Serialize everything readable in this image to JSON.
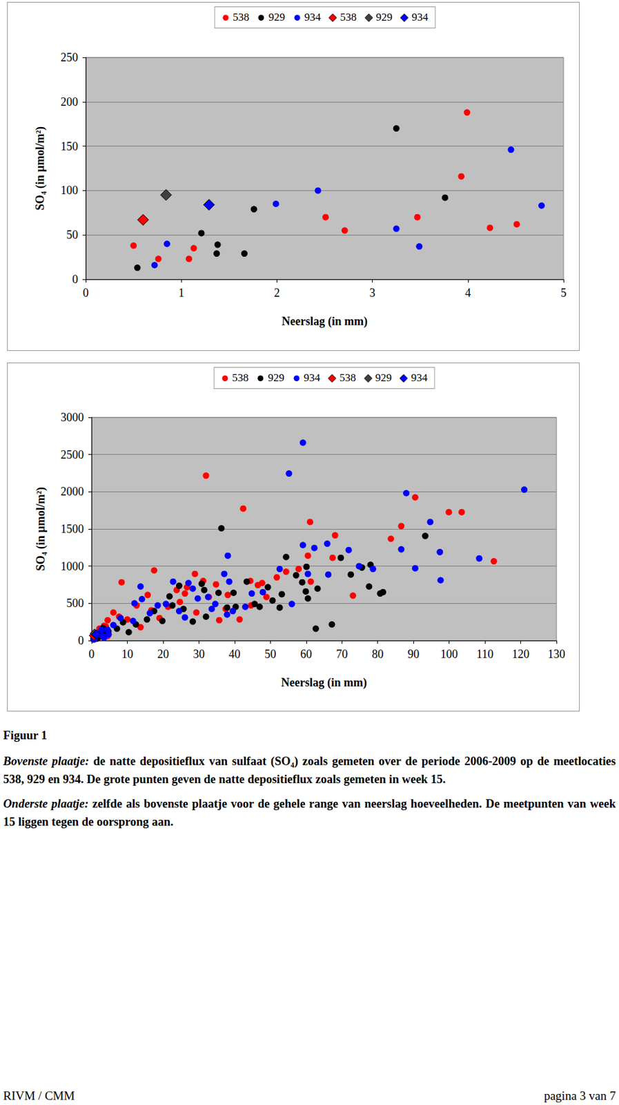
{
  "chart_data": [
    {
      "type": "scatter",
      "xlabel": "Neerslag (in mm)",
      "ylabel": "SO₄ (in µmol/m²)",
      "xlim": [
        0,
        5
      ],
      "xticks": [
        0,
        1,
        2,
        3,
        4,
        5
      ],
      "ylim": [
        0,
        250
      ],
      "yticks": [
        0,
        50,
        100,
        150,
        200,
        250
      ],
      "grid": "y",
      "legend": "top",
      "series": [
        {
          "name": "538",
          "color": "#ff0000",
          "marker": "circle",
          "x": [
            0.5,
            0.76,
            1.08,
            1.13,
            2.51,
            2.71,
            3.47,
            3.93,
            3.99,
            4.23,
            4.51
          ],
          "values": [
            38,
            23,
            23,
            35,
            70,
            55,
            70,
            116,
            188,
            58,
            62
          ]
        },
        {
          "name": "929",
          "color": "#000000",
          "marker": "circle",
          "x": [
            0.54,
            1.21,
            1.38,
            1.37,
            1.66,
            1.76,
            3.25,
            3.76
          ],
          "values": [
            13,
            52,
            39,
            29,
            29,
            79,
            170,
            92
          ]
        },
        {
          "name": "934",
          "color": "#0000ff",
          "marker": "circle",
          "x": [
            0.72,
            0.85,
            1.99,
            2.43,
            3.25,
            3.49,
            4.45,
            4.77
          ],
          "values": [
            16,
            40,
            85,
            100,
            57,
            37,
            146,
            83
          ]
        },
        {
          "name": "538",
          "color": "#ff0000",
          "marker": "diamond",
          "x": [
            0.6
          ],
          "values": [
            67
          ]
        },
        {
          "name": "929",
          "color": "#404040",
          "marker": "diamond",
          "x": [
            0.84
          ],
          "values": [
            95
          ]
        },
        {
          "name": "934",
          "color": "#0000ff",
          "marker": "diamond",
          "x": [
            1.29
          ],
          "values": [
            84
          ]
        }
      ]
    },
    {
      "type": "scatter",
      "xlabel": "Neerslag (in mm)",
      "ylabel": "SO₄ (in µmol/m²)",
      "xlim": [
        0,
        130
      ],
      "xticks": [
        0,
        10,
        20,
        30,
        40,
        50,
        60,
        70,
        80,
        90,
        100,
        110,
        120,
        130
      ],
      "ylim": [
        0,
        3000
      ],
      "yticks": [
        0,
        500,
        1000,
        1500,
        2000,
        2500,
        3000
      ],
      "grid": "y",
      "legend": "top",
      "series": [
        {
          "name": "538",
          "color": "#ff0000",
          "marker": "circle",
          "x": [
            0.5,
            0.76,
            1.08,
            1.13,
            2.51,
            2.71,
            3.47,
            3.93,
            3.99,
            4.23,
            4.51,
            8.4,
            17.5,
            32,
            42.4,
            61.1,
            68.1,
            83.7,
            86.6,
            90.5,
            99.9,
            103.5,
            112.5,
            67.4,
            73.1,
            60.5,
            61.3,
            57.9,
            54.4,
            51.8,
            44.4,
            47.7,
            46.5,
            35.7,
            34.8,
            28.9,
            31.2,
            26.7,
            26.1,
            23.8,
            6.1,
            4.5,
            10,
            12.6,
            15.7,
            16.7,
            19,
            21.4,
            2.2,
            3.5,
            7.7,
            13.7,
            38.1,
            37.5,
            41.4,
            32.8,
            29.3,
            24.7,
            44.6,
            48.9
          ],
          "values": [
            38,
            23,
            23,
            35,
            70,
            55,
            70,
            116,
            188,
            58,
            62,
            783,
            943,
            2217,
            1774,
            1594,
            1415,
            1368,
            1538,
            1925,
            1726,
            1726,
            1066,
            1113,
            604,
            1141,
            792,
            962,
            925,
            849,
            802,
            774,
            745,
            274,
            755,
            896,
            802,
            717,
            632,
            679,
            377,
            274,
            283,
            472,
            613,
            406,
            302,
            453,
            160,
            198,
            321,
            179,
            613,
            425,
            283,
            585,
            377,
            519,
            472,
            585
          ]
        },
        {
          "name": "929",
          "color": "#000000",
          "marker": "circle",
          "x": [
            0.54,
            1.21,
            1.38,
            1.37,
            1.66,
            1.76,
            3.25,
            3.76,
            36.3,
            93.3,
            54.4,
            69.7,
            78,
            75.6,
            72.5,
            77.6,
            80.7,
            81.5,
            62.7,
            67.2,
            60.1,
            58.9,
            57.2,
            59.9,
            60.5,
            63.2,
            49.3,
            53.2,
            50.6,
            52.6,
            43.4,
            45.6,
            47,
            39.7,
            37.9,
            40.3,
            30.8,
            31.5,
            32,
            28.3,
            24.5,
            21.8,
            22.6,
            19.8,
            25.7,
            17.5,
            15.5,
            12.4,
            10.4,
            8.8,
            7.1,
            4.7,
            35.5
          ],
          "values": [
            13,
            52,
            39,
            29,
            29,
            79,
            170,
            92,
            1509,
            1406,
            1123,
            1113,
            1019,
            981,
            887,
            726,
            632,
            651,
            160,
            217,
            991,
            783,
            877,
            660,
            566,
            698,
            717,
            623,
            538,
            443,
            792,
            491,
            453,
            642,
            443,
            453,
            764,
            679,
            321,
            255,
            736,
            594,
            472,
            264,
            425,
            396,
            283,
            217,
            113,
            245,
            160,
            123,
            642
          ]
        },
        {
          "name": "934",
          "color": "#0000ff",
          "marker": "circle",
          "x": [
            0.72,
            0.85,
            1.99,
            2.43,
            3.25,
            3.49,
            4.45,
            4.77,
            59.1,
            55.2,
            88,
            121,
            94.7,
            86.6,
            97.4,
            108.4,
            97.6,
            90.5,
            71.9,
            65.9,
            62.3,
            59.1,
            74.8,
            78.7,
            66.2,
            60.5,
            56,
            52.6,
            38.1,
            37.1,
            38.5,
            44.8,
            47.9,
            39.5,
            37.9,
            33.6,
            34.6,
            32.6,
            22.8,
            27.1,
            28.3,
            29.7,
            13.7,
            12,
            14.1,
            20.8,
            18.5,
            16.3,
            11.6,
            8.1,
            2.7,
            6.1,
            24.5,
            26.1,
            43
          ],
          "values": [
            16,
            40,
            85,
            100,
            57,
            37,
            146,
            83,
            2660,
            2245,
            1981,
            2028,
            1594,
            1226,
            1189,
            1104,
            811,
            972,
            1217,
            1302,
            1245,
            1283,
            1000,
            962,
            887,
            896,
            491,
            962,
            1141,
            896,
            792,
            632,
            651,
            396,
            349,
            425,
            491,
            585,
            792,
            774,
            698,
            566,
            726,
            500,
            557,
            491,
            472,
            368,
            264,
            302,
            142,
            208,
            396,
            311,
            453
          ]
        },
        {
          "name": "538",
          "color": "#ff0000",
          "marker": "diamond",
          "x": [
            0.6
          ],
          "values": [
            67
          ]
        },
        {
          "name": "929",
          "color": "#404040",
          "marker": "diamond",
          "x": [
            0.84
          ],
          "values": [
            95
          ]
        },
        {
          "name": "934",
          "color": "#0000ff",
          "marker": "diamond",
          "x": [
            1.29
          ],
          "values": [
            84
          ]
        }
      ]
    }
  ],
  "caption": {
    "label": "Figuur 1",
    "paragraphs": [
      {
        "lead": "Bovenste plaatje:",
        "text": "de natte depositieflux van sulfaat (SO₄) zoals gemeten over de periode 2006-2009 op de meetlocaties 538, 929 en 934. De grote punten geven de natte depositieflux zoals gemeten in week 15."
      },
      {
        "lead": "Onderste plaatje:",
        "text": "zelfde als bovenste plaatje voor de gehele range van neerslag hoeveelheden. De meetpunten van week 15 liggen tegen de oorsprong aan."
      }
    ]
  },
  "footer": {
    "left": "RIVM / CMM",
    "right": "pagina 3 van 7"
  }
}
